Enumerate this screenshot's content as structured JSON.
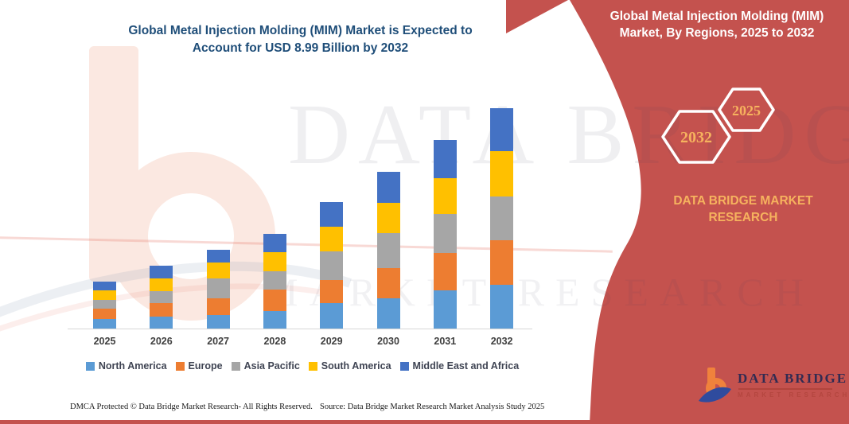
{
  "header": {
    "title_line1": "Global Metal Injection Molding (MIM) Market is Expected to",
    "title_line2": "Account for USD 8.99 Billion by 2032"
  },
  "panel": {
    "title_line1": "Global Metal Injection Molding (MIM)",
    "title_line2": "Market, By Regions, 2025 to 2032",
    "hexagon_back_label": "2032",
    "hexagon_front_label": "2025",
    "brand_line1": "DATA BRIDGE MARKET",
    "brand_line2": "RESEARCH",
    "bg_color": "#C4524E",
    "accent_text_color": "#F6B25E"
  },
  "logo": {
    "name": "DATA BRIDGE",
    "subtitle": "MARKET RESEARCH"
  },
  "watermark": {
    "text1": "DATA BRIDGE",
    "text2": "MARKET RESEARCH"
  },
  "footer": {
    "left": "DMCA Protected © Data Bridge Market Research-  All Rights Reserved.",
    "source": "Source: Data Bridge Market Research  Market Analysis Study 2025"
  },
  "chart_data": {
    "type": "bar",
    "stacked": true,
    "unit": "USD Billion",
    "categories": [
      "2025",
      "2026",
      "2027",
      "2028",
      "2029",
      "2030",
      "2031",
      "2032"
    ],
    "series": [
      {
        "name": "North America",
        "color": "#5B9BD5",
        "values": [
          0.4,
          0.48,
          0.55,
          0.7,
          1.03,
          1.24,
          1.57,
          1.79
        ]
      },
      {
        "name": "Europe",
        "color": "#ED7D31",
        "values": [
          0.41,
          0.56,
          0.68,
          0.89,
          0.94,
          1.24,
          1.52,
          1.82
        ]
      },
      {
        "name": "Asia Pacific",
        "color": "#A6A6A6",
        "values": [
          0.36,
          0.5,
          0.81,
          0.76,
          1.17,
          1.41,
          1.57,
          1.79
        ]
      },
      {
        "name": "South America",
        "color": "#FFC000",
        "values": [
          0.38,
          0.51,
          0.67,
          0.76,
          1.0,
          1.23,
          1.48,
          1.84
        ]
      },
      {
        "name": "Middle East and Africa",
        "color": "#4472C4",
        "values": [
          0.37,
          0.51,
          0.5,
          0.74,
          1.03,
          1.28,
          1.57,
          1.75
        ]
      }
    ],
    "column_totals": [
      1.92,
      2.56,
      3.21,
      3.85,
      5.17,
      6.4,
      7.71,
      8.99
    ],
    "highlight_total_2032": 8.99,
    "grid": false,
    "y_axis_visible": false,
    "x_axis_visible": true,
    "legend_position": "bottom",
    "ylim": [
      0,
      9
    ]
  }
}
